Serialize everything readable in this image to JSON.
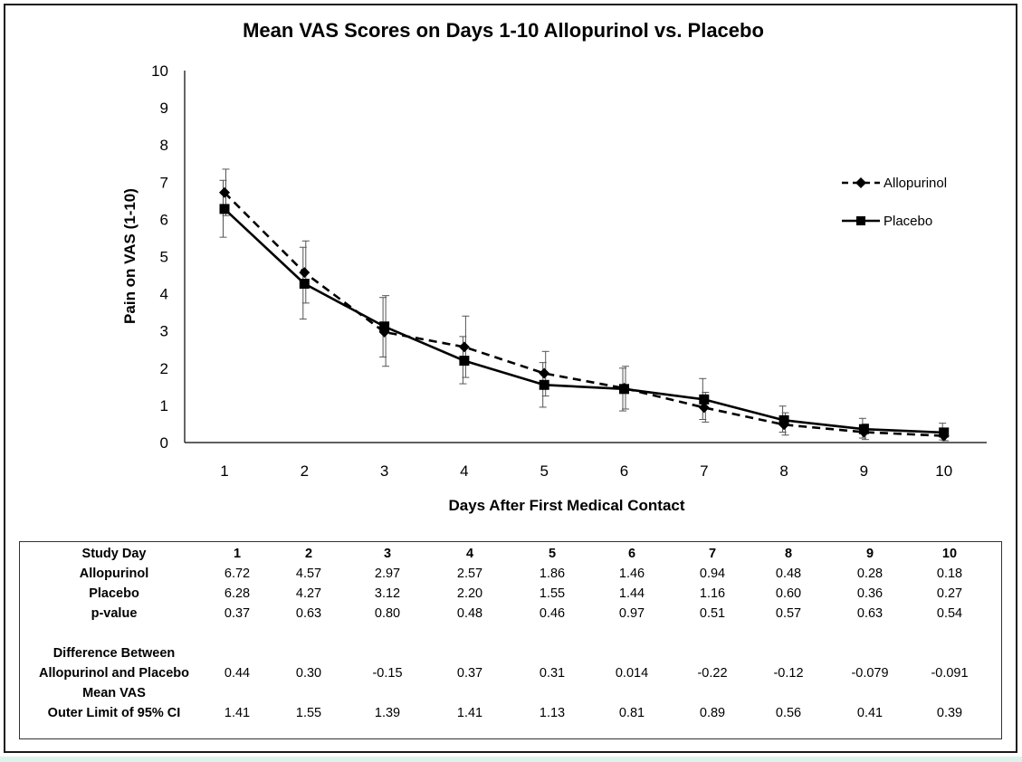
{
  "chart_data": {
    "type": "line",
    "title": "Mean VAS Scores on Days 1-10 Allopurinol vs. Placebo",
    "xlabel": "Days After First Medical Contact",
    "ylabel": "Pain on VAS (1-10)",
    "x": [
      1,
      2,
      3,
      4,
      5,
      6,
      7,
      8,
      9,
      10
    ],
    "x_tick_labels": [
      "1",
      "2",
      "3",
      "4",
      "5",
      "6",
      "7",
      "8",
      "9",
      "10"
    ],
    "ylim": [
      0,
      10
    ],
    "y_ticks": [
      0,
      1,
      2,
      3,
      4,
      5,
      6,
      7,
      8,
      9,
      10
    ],
    "y_tick_labels": [
      "0",
      "1",
      "2",
      "3",
      "4",
      "5",
      "6",
      "7",
      "8",
      "9",
      "10"
    ],
    "grid": false,
    "legend_position": "right",
    "series": [
      {
        "name": "Allopurinol",
        "line_style": "dashed",
        "marker": "diamond",
        "color": "#000000",
        "values": [
          6.72,
          4.57,
          2.97,
          2.57,
          1.86,
          1.46,
          0.94,
          0.48,
          0.28,
          0.18
        ],
        "error_upper": [
          7.35,
          5.42,
          3.95,
          3.4,
          2.45,
          2.05,
          1.35,
          0.8,
          0.5,
          0.38
        ],
        "error_lower": [
          6.1,
          3.75,
          2.05,
          1.75,
          1.25,
          0.9,
          0.55,
          0.2,
          0.08,
          0.05
        ]
      },
      {
        "name": "Placebo",
        "line_style": "solid",
        "marker": "square",
        "color": "#000000",
        "values": [
          6.28,
          4.27,
          3.12,
          2.2,
          1.55,
          1.44,
          1.16,
          0.6,
          0.36,
          0.27
        ],
        "error_upper": [
          7.05,
          5.25,
          3.9,
          2.85,
          2.15,
          2.0,
          1.72,
          0.98,
          0.65,
          0.52
        ],
        "error_lower": [
          5.52,
          3.32,
          2.3,
          1.58,
          0.95,
          0.85,
          0.62,
          0.28,
          0.12,
          0.07
        ]
      }
    ]
  },
  "table": {
    "header_label": "Study Day",
    "days": [
      "1",
      "2",
      "3",
      "4",
      "5",
      "6",
      "7",
      "8",
      "9",
      "10"
    ],
    "rows": [
      {
        "label": "Allopurinol",
        "values": [
          "6.72",
          "4.57",
          "2.97",
          "2.57",
          "1.86",
          "1.46",
          "0.94",
          "0.48",
          "0.28",
          "0.18"
        ]
      },
      {
        "label": "Placebo",
        "values": [
          "6.28",
          "4.27",
          "3.12",
          "2.20",
          "1.55",
          "1.44",
          "1.16",
          "0.60",
          "0.36",
          "0.27"
        ]
      },
      {
        "label": "p-value",
        "values": [
          "0.37",
          "0.63",
          "0.80",
          "0.48",
          "0.46",
          "0.97",
          "0.51",
          "0.57",
          "0.63",
          "0.54"
        ]
      }
    ],
    "difference_row": {
      "label_line1": "Difference Between",
      "label_line2": "Allopurinol and Placebo",
      "label_line3": "Mean VAS",
      "values": [
        "0.44",
        "0.30",
        "-0.15",
        "0.37",
        "0.31",
        "0.014",
        "-0.22",
        "-0.12",
        "-0.079",
        "-0.091"
      ]
    },
    "ci_row": {
      "label": "Outer Limit of 95% CI",
      "values": [
        "1.41",
        "1.55",
        "1.39",
        "1.41",
        "1.13",
        "0.81",
        "0.89",
        "0.56",
        "0.41",
        "0.39"
      ]
    }
  }
}
